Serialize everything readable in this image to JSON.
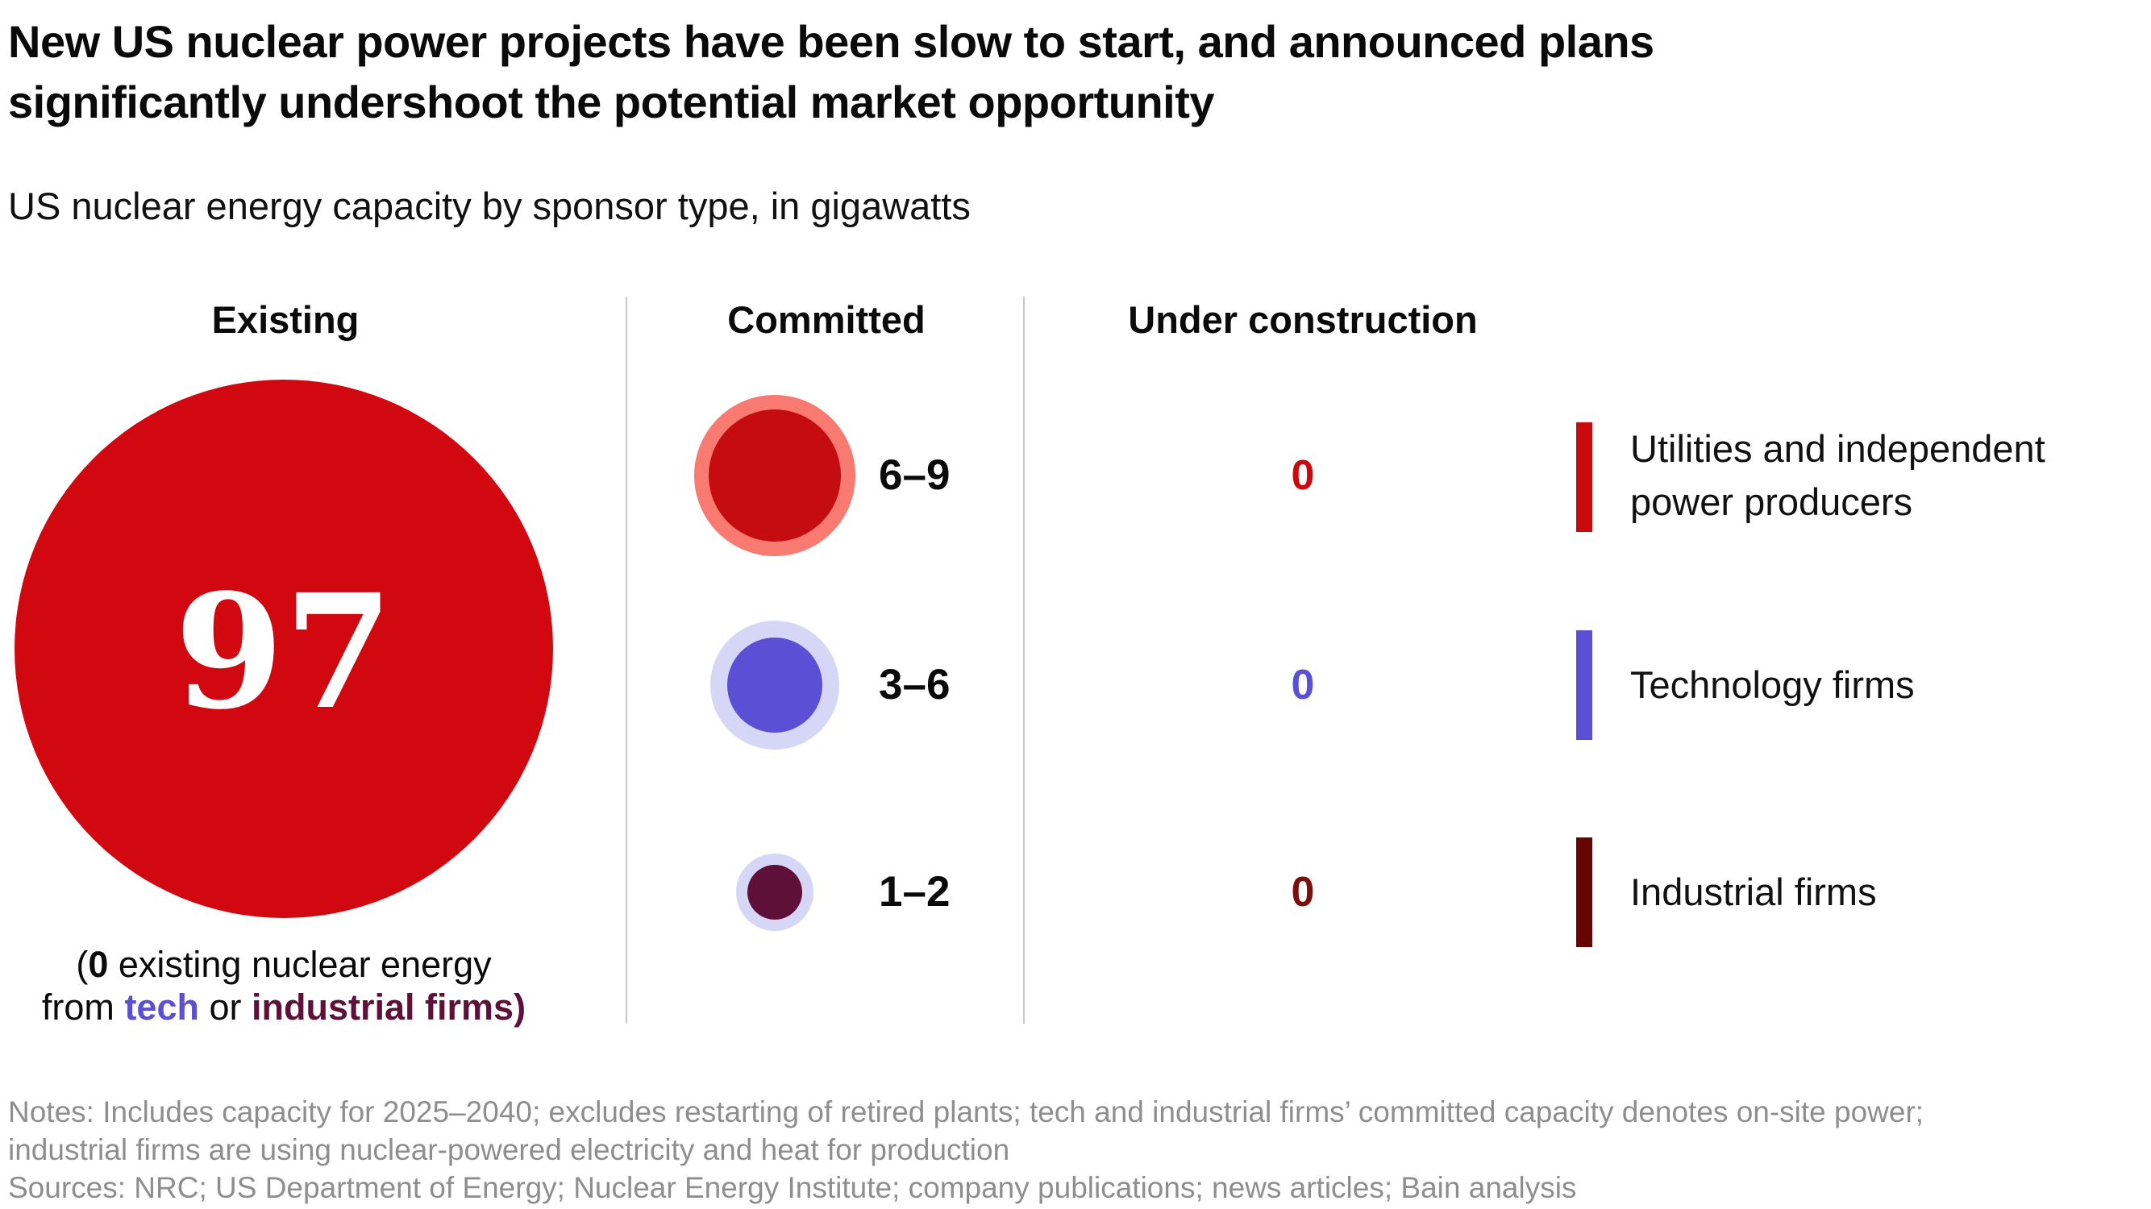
{
  "chart_data": {
    "type": "table",
    "title": "New US nuclear power projects have been slow to start, and announced plans significantly undershoot the potential market opportunity",
    "subtitle": "US nuclear energy capacity by sponsor type, in gigawatts",
    "unit": "gigawatts",
    "columns": [
      "Existing",
      "Committed",
      "Under construction"
    ],
    "rows": [
      {
        "sponsor": "Utilities and independent power producers",
        "existing": 97,
        "committed": "6–9",
        "under_construction": 0
      },
      {
        "sponsor": "Technology firms",
        "existing": 0,
        "committed": "3–6",
        "under_construction": 0
      },
      {
        "sponsor": "Industrial firms",
        "existing": 0,
        "committed": "1–2",
        "under_construction": 0
      }
    ],
    "annotations": [
      "(0 existing nuclear energy from tech or industrial firms)"
    ],
    "legend_position": "right",
    "notes": "Notes: Includes capacity for 2025–2040; excludes restarting of retired plants; tech and industrial firms’ committed capacity denotes on-site power; industrial firms are using nuclear-powered electricity and heat for production",
    "sources": "Sources: NRC; US Department of Energy; Nuclear Energy Institute; company publications; news articles; Bain analysis"
  },
  "header": {
    "title_line1": "New US nuclear power projects have been slow to start, and announced plans",
    "title_line2": "significantly undershoot the potential market opportunity",
    "subtitle": "US nuclear energy capacity by sponsor type, in gigawatts"
  },
  "columns": {
    "existing": "Existing",
    "committed": "Committed",
    "under_construction": "Under construction"
  },
  "existing": {
    "value": "97",
    "caption_open": "(",
    "caption_zero": "0",
    "caption_line1_rest": " existing nuclear energy",
    "caption_from": "from ",
    "caption_tech": "tech",
    "caption_or": " or ",
    "caption_industrial": "industrial firms)"
  },
  "committed": {
    "items": [
      {
        "label": "6–9"
      },
      {
        "label": "3–6"
      },
      {
        "label": "1–2"
      }
    ]
  },
  "under_construction": {
    "values": [
      "0",
      "0",
      "0"
    ]
  },
  "legend": {
    "items": [
      {
        "label": "Utilities and independent power producers"
      },
      {
        "label": "Technology firms"
      },
      {
        "label": "Industrial firms"
      }
    ]
  },
  "footer": {
    "notes_line1": "Notes: Includes capacity for 2025–2040; excludes restarting of retired plants; tech and industrial firms’ committed capacity denotes on-site power;",
    "notes_line2": "industrial firms are using nuclear-powered electricity and heat for production",
    "sources": "Sources: NRC; US Department of Energy; Nuclear Energy Institute; company publications; news articles; Bain analysis"
  },
  "colors": {
    "background": "#FFFFFF",
    "text_black": "#0A0A0A",
    "bain_red": "#D20810",
    "committed_red": "#C50C11",
    "committed_red_ring": "#F97A71",
    "tech_purple": "#5B50D5",
    "lavender_ring": "#D6D7F6",
    "industrial_plum": "#5E1038",
    "zero_red": "#C9090C",
    "zero_purple": "#5B50D5",
    "zero_maroon": "#7A100E",
    "bar_red": "#CB0A0E",
    "bar_purple": "#5B50D5",
    "bar_maroon": "#670505",
    "divider_gray": "#C9C9C9",
    "notes_gray": "#8E8E8E",
    "big_value_white": "#FFFFFF"
  }
}
